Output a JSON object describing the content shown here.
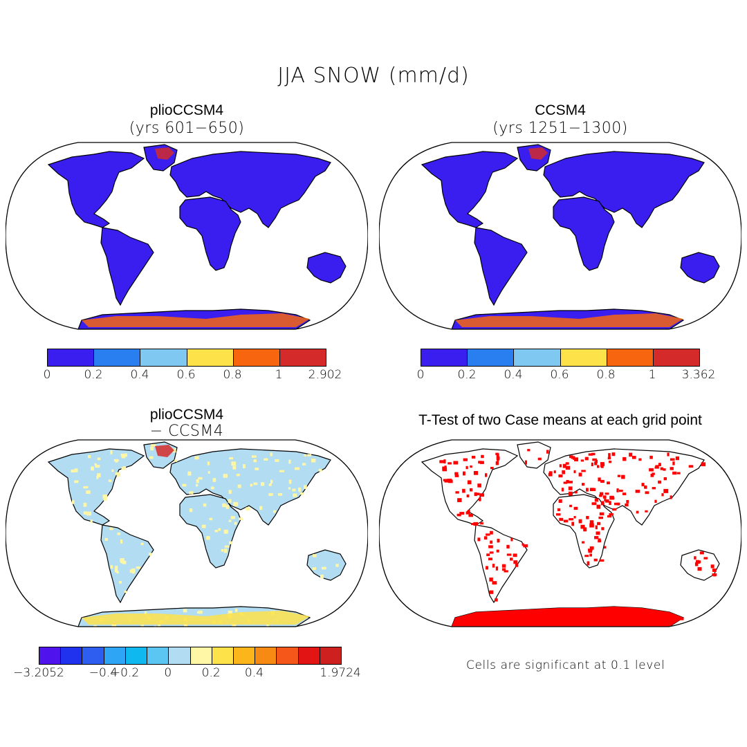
{
  "main_title": "JJA SNOW (mm/d)",
  "panels": [
    {
      "title": "plioCCSM4",
      "subtitle": "(yrs 601−650)",
      "colorbar": {
        "colors": [
          "#3a1ef0",
          "#2a7ff0",
          "#7ec8f2",
          "#fde24a",
          "#f7650f",
          "#d42a2a"
        ],
        "ticks": [
          "0",
          "0.2",
          "0.4",
          "0.6",
          "0.8",
          "1",
          "2.902"
        ]
      }
    },
    {
      "title": "CCSM4",
      "subtitle": "(yrs 1251−1300)",
      "colorbar": {
        "colors": [
          "#3a1ef0",
          "#2a7ff0",
          "#7ec8f2",
          "#fde24a",
          "#f7650f",
          "#d42a2a"
        ],
        "ticks": [
          "0",
          "0.2",
          "0.4",
          "0.6",
          "0.8",
          "1",
          "3.362"
        ]
      }
    },
    {
      "title": "plioCCSM4",
      "subtitle": "− CCSM4",
      "colorbar": {
        "colors": [
          "#4f14ee",
          "#2032ee",
          "#2e5ef0",
          "#2ea6f5",
          "#10b8f0",
          "#5cc6f2",
          "#b2dcf2",
          "#fff7a6",
          "#fde24a",
          "#fcb61c",
          "#f78a12",
          "#f5561a",
          "#e21414",
          "#cf2020"
        ],
        "ticks": [
          "−3.2052",
          "−0.4",
          "−0.2",
          "0",
          "0.2",
          "0.4",
          "1.9724"
        ]
      }
    },
    {
      "title": "T-Test of two Case means at each grid point",
      "note": "Cells are significant at 0.1 level"
    }
  ],
  "colors": {
    "land_base": "#3a1ef0",
    "diff_base": "#b2dcf2",
    "sig": "#ff0000"
  }
}
